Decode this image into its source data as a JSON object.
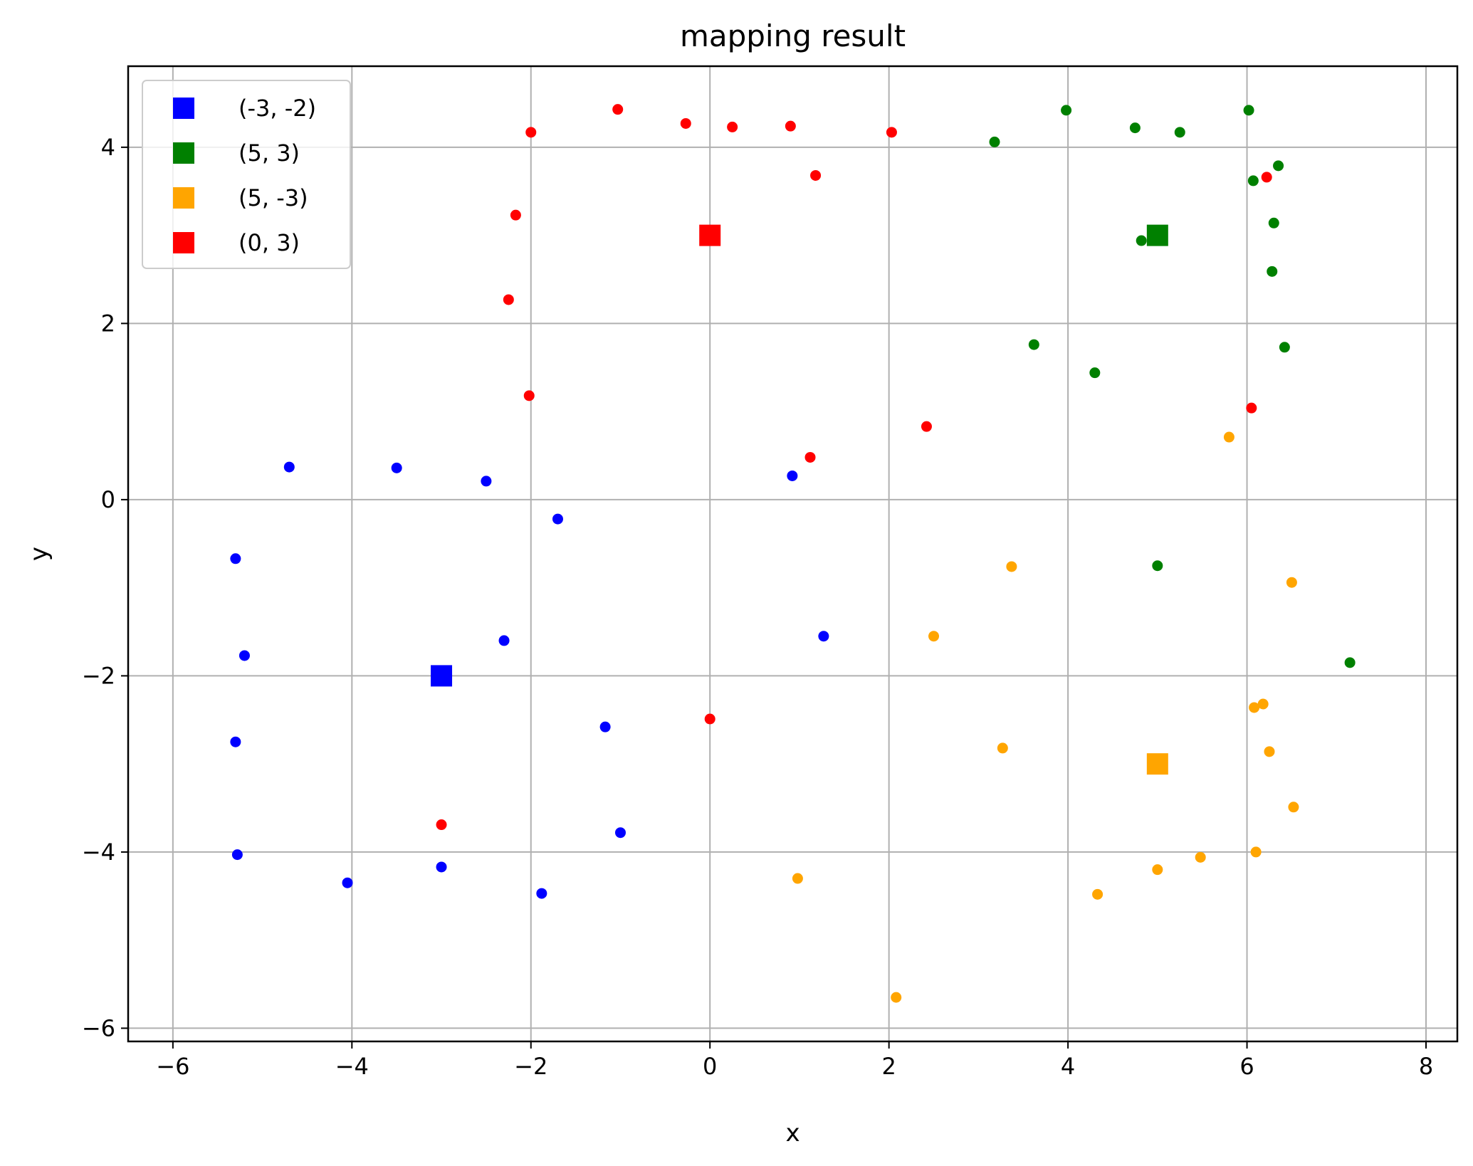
{
  "chart_data": {
    "type": "scatter",
    "title": "mapping result",
    "xlabel": "x",
    "ylabel": "y",
    "xlim": [
      -6.5,
      8.35
    ],
    "ylim": [
      -6.15,
      4.92
    ],
    "xticks": [
      -6,
      -4,
      -2,
      0,
      2,
      4,
      6,
      8
    ],
    "yticks": [
      -6,
      -4,
      -2,
      0,
      2,
      4
    ],
    "grid": true,
    "legend_position": "upper-left",
    "series": [
      {
        "name": "(-3, -2)",
        "color": "#0000ff",
        "center": [
          -3,
          -2
        ],
        "points": [
          [
            -4.7,
            0.37
          ],
          [
            -3.5,
            0.36
          ],
          [
            -2.5,
            0.21
          ],
          [
            -1.7,
            -0.22
          ],
          [
            0.92,
            0.27
          ],
          [
            -5.3,
            -0.67
          ],
          [
            -5.2,
            -1.77
          ],
          [
            -2.3,
            -1.6
          ],
          [
            1.27,
            -1.55
          ],
          [
            -5.3,
            -2.75
          ],
          [
            -1.17,
            -2.58
          ],
          [
            -1.0,
            -3.78
          ],
          [
            -5.28,
            -4.03
          ],
          [
            -4.05,
            -4.35
          ],
          [
            -3.0,
            -4.17
          ],
          [
            -1.88,
            -4.47
          ]
        ]
      },
      {
        "name": "(5, 3)",
        "color": "#008000",
        "center": [
          5,
          3
        ],
        "points": [
          [
            3.18,
            4.06
          ],
          [
            3.98,
            4.42
          ],
          [
            4.75,
            4.22
          ],
          [
            5.25,
            4.17
          ],
          [
            6.02,
            4.42
          ],
          [
            6.35,
            3.79
          ],
          [
            6.07,
            3.62
          ],
          [
            6.3,
            3.14
          ],
          [
            4.82,
            2.94
          ],
          [
            6.28,
            2.59
          ],
          [
            3.62,
            1.76
          ],
          [
            6.42,
            1.73
          ],
          [
            4.3,
            1.44
          ],
          [
            5.0,
            -0.75
          ],
          [
            7.15,
            -1.85
          ]
        ]
      },
      {
        "name": "(5, -3)",
        "color": "#ffa500",
        "center": [
          5,
          -3
        ],
        "points": [
          [
            5.8,
            0.71
          ],
          [
            3.37,
            -0.76
          ],
          [
            6.5,
            -0.94
          ],
          [
            2.5,
            -1.55
          ],
          [
            6.08,
            -2.36
          ],
          [
            6.18,
            -2.32
          ],
          [
            3.27,
            -2.82
          ],
          [
            6.25,
            -2.86
          ],
          [
            6.52,
            -3.49
          ],
          [
            6.1,
            -4.0
          ],
          [
            5.48,
            -4.06
          ],
          [
            5.0,
            -4.2
          ],
          [
            0.98,
            -4.3
          ],
          [
            4.33,
            -4.48
          ],
          [
            2.08,
            -5.65
          ]
        ]
      },
      {
        "name": "(0, 3)",
        "color": "#ff0000",
        "center": [
          0,
          3
        ],
        "points": [
          [
            -2.0,
            4.17
          ],
          [
            -1.03,
            4.43
          ],
          [
            -0.27,
            4.27
          ],
          [
            0.25,
            4.23
          ],
          [
            0.9,
            4.24
          ],
          [
            2.03,
            4.17
          ],
          [
            1.18,
            3.68
          ],
          [
            6.22,
            3.66
          ],
          [
            -2.17,
            3.23
          ],
          [
            -2.25,
            2.27
          ],
          [
            -2.02,
            1.18
          ],
          [
            6.05,
            1.04
          ],
          [
            2.42,
            0.83
          ],
          [
            1.12,
            0.48
          ],
          [
            0.0,
            -2.49
          ],
          [
            -3.0,
            -3.69
          ]
        ]
      }
    ]
  }
}
